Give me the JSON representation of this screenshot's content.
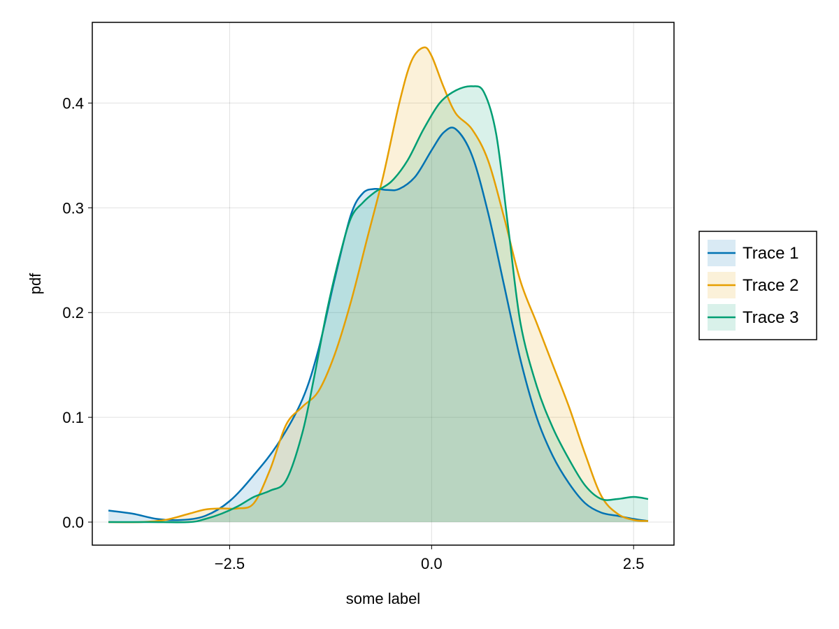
{
  "chart_data": {
    "type": "area",
    "title": "",
    "xlabel": "some label",
    "ylabel": "pdf",
    "xlim": [
      -4.2,
      3.0
    ],
    "ylim": [
      -0.022,
      0.477
    ],
    "xticks": [
      -2.5,
      0.0,
      2.5
    ],
    "xtick_labels": [
      "−2.5",
      "0.0",
      "2.5"
    ],
    "yticks": [
      0.0,
      0.1,
      0.2,
      0.3,
      0.4
    ],
    "ytick_labels": [
      "0.0",
      "0.1",
      "0.2",
      "0.3",
      "0.4"
    ],
    "grid": true,
    "legend_position": "right",
    "series": [
      {
        "name": "Trace 1",
        "color": "#0072B2",
        "x": [
          -4.0,
          -3.7,
          -3.4,
          -3.1,
          -2.8,
          -2.5,
          -2.2,
          -1.9,
          -1.6,
          -1.4,
          -1.2,
          -1.0,
          -0.85,
          -0.7,
          -0.55,
          -0.4,
          -0.2,
          0.0,
          0.15,
          0.3,
          0.5,
          0.7,
          0.9,
          1.1,
          1.3,
          1.5,
          1.7,
          1.9,
          2.1,
          2.3,
          2.5,
          2.68
        ],
        "y": [
          0.011,
          0.008,
          0.003,
          0.002,
          0.006,
          0.02,
          0.045,
          0.075,
          0.117,
          0.165,
          0.232,
          0.293,
          0.314,
          0.318,
          0.317,
          0.318,
          0.33,
          0.355,
          0.372,
          0.375,
          0.35,
          0.295,
          0.225,
          0.155,
          0.1,
          0.063,
          0.037,
          0.018,
          0.009,
          0.006,
          0.003,
          0.001
        ]
      },
      {
        "name": "Trace 2",
        "color": "#E69F00",
        "x": [
          -4.0,
          -3.6,
          -3.3,
          -3.0,
          -2.8,
          -2.6,
          -2.4,
          -2.2,
          -2.0,
          -1.8,
          -1.6,
          -1.4,
          -1.2,
          -1.0,
          -0.8,
          -0.6,
          -0.4,
          -0.25,
          -0.1,
          0.0,
          0.15,
          0.3,
          0.5,
          0.7,
          0.9,
          1.1,
          1.3,
          1.5,
          1.7,
          1.9,
          2.1,
          2.3,
          2.5,
          2.68
        ],
        "y": [
          0.0,
          0.0,
          0.002,
          0.008,
          0.012,
          0.013,
          0.013,
          0.018,
          0.05,
          0.093,
          0.11,
          0.125,
          0.16,
          0.21,
          0.27,
          0.33,
          0.4,
          0.44,
          0.453,
          0.445,
          0.415,
          0.39,
          0.375,
          0.345,
          0.29,
          0.23,
          0.19,
          0.15,
          0.11,
          0.065,
          0.025,
          0.008,
          0.002,
          0.001
        ]
      },
      {
        "name": "Trace 3",
        "color": "#009E73",
        "x": [
          -4.0,
          -3.5,
          -3.0,
          -2.8,
          -2.6,
          -2.4,
          -2.2,
          -2.0,
          -1.8,
          -1.6,
          -1.45,
          -1.3,
          -1.15,
          -1.0,
          -0.85,
          -0.7,
          -0.5,
          -0.3,
          -0.1,
          0.1,
          0.3,
          0.5,
          0.65,
          0.8,
          0.95,
          1.1,
          1.3,
          1.5,
          1.7,
          1.9,
          2.1,
          2.3,
          2.5,
          2.68
        ],
        "y": [
          0.0,
          0.0,
          0.0,
          0.003,
          0.008,
          0.015,
          0.024,
          0.03,
          0.04,
          0.085,
          0.14,
          0.2,
          0.25,
          0.29,
          0.305,
          0.315,
          0.325,
          0.345,
          0.375,
          0.4,
          0.412,
          0.416,
          0.41,
          0.37,
          0.28,
          0.19,
          0.13,
          0.09,
          0.06,
          0.035,
          0.022,
          0.022,
          0.024,
          0.022
        ]
      }
    ]
  }
}
